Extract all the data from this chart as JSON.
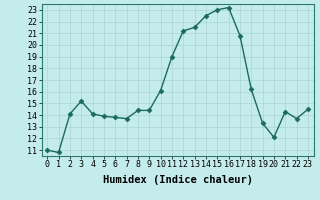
{
  "x": [
    0,
    1,
    2,
    3,
    4,
    5,
    6,
    7,
    8,
    9,
    10,
    11,
    12,
    13,
    14,
    15,
    16,
    17,
    18,
    19,
    20,
    21,
    22,
    23
  ],
  "y": [
    11,
    10.8,
    14.1,
    15.2,
    14.1,
    13.9,
    13.8,
    13.7,
    14.4,
    14.4,
    16.1,
    19.0,
    21.2,
    21.5,
    22.5,
    23.0,
    23.2,
    20.8,
    16.2,
    13.3,
    12.1,
    14.3,
    13.7,
    14.5
  ],
  "line_color": "#1a6b5a",
  "marker": "D",
  "markersize": 2.5,
  "linewidth": 1.0,
  "bg_color": "#c5ecec",
  "grid_color": "#aad4d4",
  "xlabel": "Humidex (Indice chaleur)",
  "xlabel_fontsize": 7.5,
  "xlim": [
    -0.5,
    23.5
  ],
  "ylim": [
    10.5,
    23.5
  ],
  "yticks": [
    11,
    12,
    13,
    14,
    15,
    16,
    17,
    18,
    19,
    20,
    21,
    22,
    23
  ],
  "xticks": [
    0,
    1,
    2,
    3,
    4,
    5,
    6,
    7,
    8,
    9,
    10,
    11,
    12,
    13,
    14,
    15,
    16,
    17,
    18,
    19,
    20,
    21,
    22,
    23
  ],
  "tick_fontsize": 6.0
}
